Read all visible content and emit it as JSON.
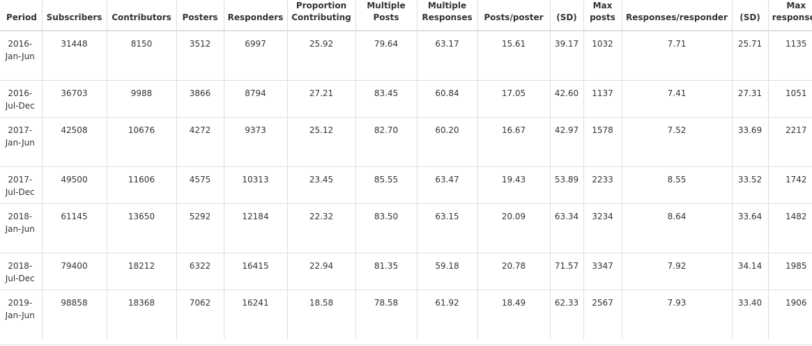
{
  "table": {
    "headers": [
      "Period",
      "Subscribers",
      "Contributors",
      "Posters",
      "Responders",
      "Proportion Contributing",
      "Multiple Posts",
      "Multiple Responses",
      "Posts/poster",
      "(SD)",
      "Max posts",
      "Responses/responder",
      "(SD)",
      "Max responses"
    ],
    "rows": [
      [
        "2016-Jan-Jun",
        "31448",
        "8150",
        "3512",
        "6997",
        "25.92",
        "79.64",
        "63.17",
        "15.61",
        "39.17",
        "1032",
        "7.71",
        "25.71",
        "1135"
      ],
      [
        "2016-Jul-Dec",
        "36703",
        "9988",
        "3866",
        "8794",
        "27.21",
        "83.45",
        "60.84",
        "17.05",
        "42.60",
        "1137",
        "7.41",
        "27.31",
        "1051"
      ],
      [
        "2017-Jan-Jun",
        "42508",
        "10676",
        "4272",
        "9373",
        "25.12",
        "82.70",
        "60.20",
        "16.67",
        "42.97",
        "1578",
        "7.52",
        "33.69",
        "2217"
      ],
      [
        "2017-Jul-Dec",
        "49500",
        "11606",
        "4575",
        "10313",
        "23.45",
        "85.55",
        "63.47",
        "19.43",
        "53.89",
        "2233",
        "8.55",
        "33.52",
        "1742"
      ],
      [
        "2018-Jan-Jun",
        "61145",
        "13650",
        "5292",
        "12184",
        "22.32",
        "83.50",
        "63.15",
        "20.09",
        "63.34",
        "3234",
        "8.64",
        "33.64",
        "1482"
      ],
      [
        "2018-Jul-Dec",
        "79400",
        "18212",
        "6322",
        "16415",
        "22.94",
        "81.35",
        "59.18",
        "20.78",
        "71.57",
        "3347",
        "7.92",
        "34.14",
        "1985"
      ],
      [
        "2019-Jan-Jun",
        "98858",
        "18368",
        "7062",
        "16241",
        "18.58",
        "78.58",
        "61.92",
        "18.49",
        "62.33",
        "2567",
        "7.93",
        "33.40",
        "1906"
      ]
    ]
  }
}
